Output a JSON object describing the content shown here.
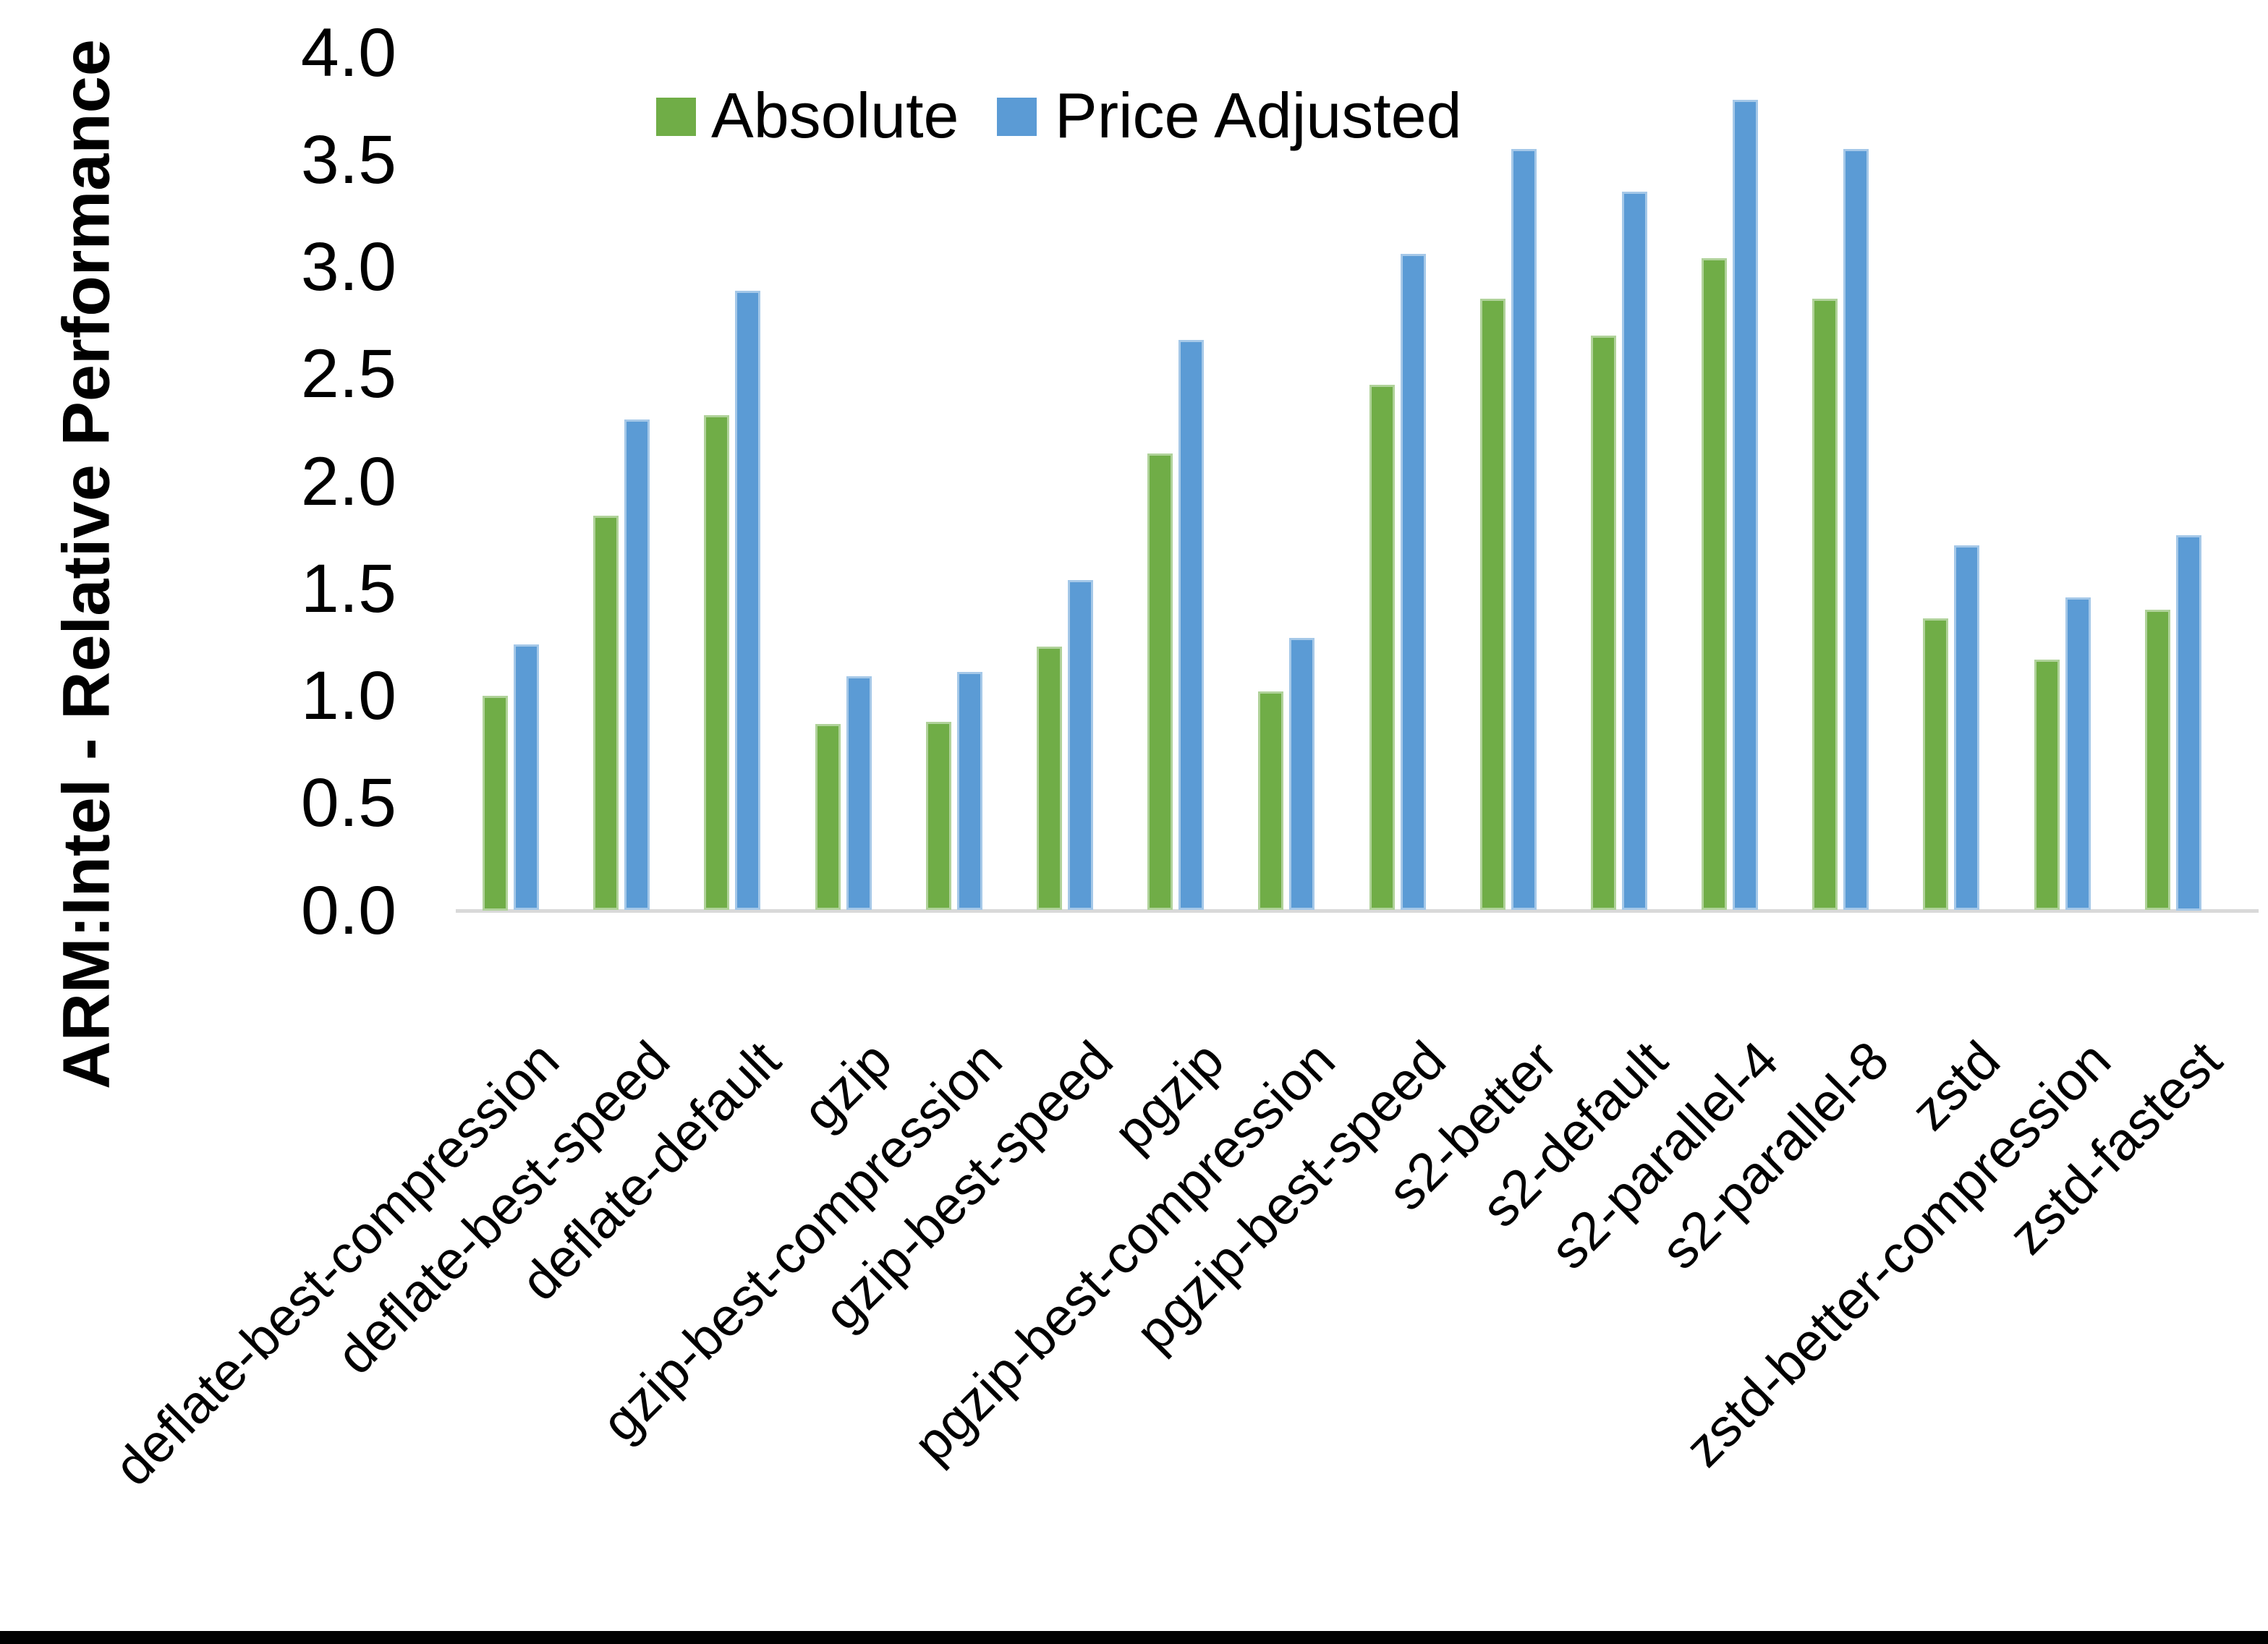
{
  "chart_data": {
    "type": "bar",
    "title": "",
    "xlabel": "",
    "ylabel": "ARM:Intel - Relative Performance",
    "ylim": [
      0.0,
      4.0
    ],
    "y_tick_step": 0.5,
    "y_ticks": [
      "4.0",
      "3.5",
      "3.0",
      "2.5",
      "2.0",
      "1.5",
      "1.0",
      "0.5",
      "0.0"
    ],
    "grid": false,
    "legend_position": "top-center",
    "categories": [
      "deflate-best-compression",
      "deflate-best-speed",
      "deflate-default",
      "gzip",
      "gzip-best-compression",
      "gzip-best-speed",
      "pgzip",
      "pgzip-best-compression",
      "pgzip-best-speed",
      "s2-better",
      "s2-default",
      "s2-parallel-4",
      "s2-parallel-8",
      "zstd",
      "zstd-better-compression",
      "zstd-fastest"
    ],
    "series": [
      {
        "name": "Absolute",
        "color": "#70AD47",
        "values": [
          1.0,
          1.84,
          2.31,
          0.87,
          0.88,
          1.23,
          2.13,
          1.02,
          2.45,
          2.85,
          2.68,
          3.04,
          2.85,
          1.36,
          1.17,
          1.4
        ]
      },
      {
        "name": "Price Adjusted",
        "color": "#5B9BD5",
        "values": [
          1.24,
          2.29,
          2.89,
          1.09,
          1.11,
          1.54,
          2.66,
          1.27,
          3.06,
          3.55,
          3.35,
          3.78,
          3.55,
          1.7,
          1.46,
          1.75
        ]
      }
    ]
  },
  "colors": {
    "background": "#FFFFFF",
    "axis_line": "#D9D9D9",
    "text": "#000000",
    "bottom_strip": "#000000"
  }
}
